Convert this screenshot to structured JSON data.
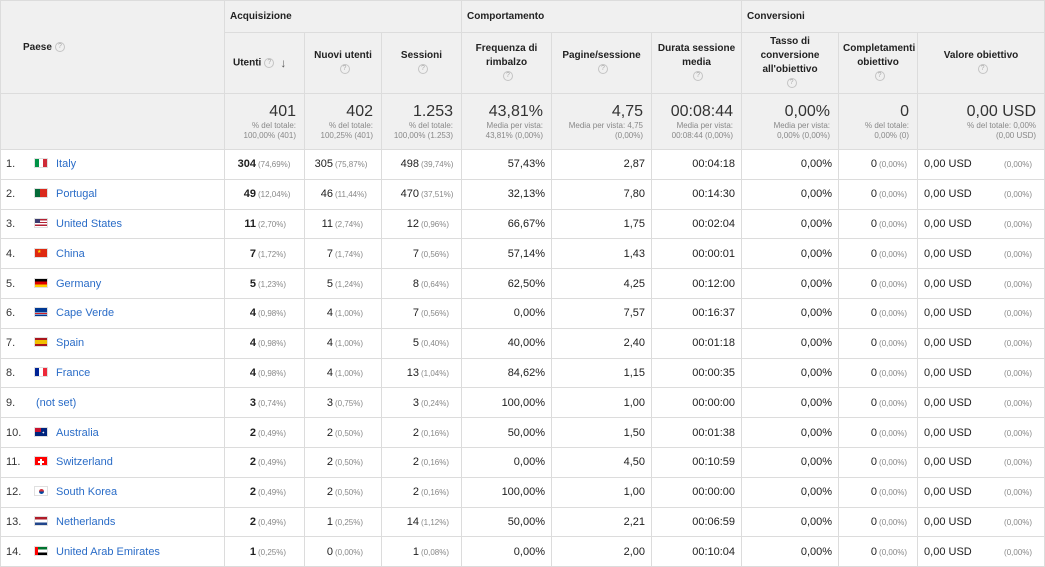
{
  "headers": {
    "paese": "Paese",
    "groups": [
      "Acquisizione",
      "Comportamento",
      "Conversioni"
    ],
    "columns": [
      "Utenti",
      "Nuovi utenti",
      "Sessioni",
      "Frequenza di rimbalzo",
      "Pagine/sessione",
      "Durata sessione media",
      "Tasso di conversione all'obiettivo",
      "Completamenti obiettivo",
      "Valore obiettivo"
    ]
  },
  "totals": [
    {
      "value": "401",
      "note1": "% del totale:",
      "note2": "100,00% (401)"
    },
    {
      "value": "402",
      "note1": "% del totale:",
      "note2": "100,25% (401)"
    },
    {
      "value": "1.253",
      "note1": "% del totale:",
      "note2": "100,00% (1.253)"
    },
    {
      "value": "43,81%",
      "note1": "Media per vista:",
      "note2": "43,81% (0,00%)"
    },
    {
      "value": "4,75",
      "note1": "Media per vista: 4,75",
      "note2": "(0,00%)"
    },
    {
      "value": "00:08:44",
      "note1": "Media per vista:",
      "note2": "00:08:44 (0,00%)"
    },
    {
      "value": "0,00%",
      "note1": "Media per vista:",
      "note2": "0,00% (0,00%)"
    },
    {
      "value": "0",
      "note1": "% del totale:",
      "note2": "0,00% (0)"
    },
    {
      "value": "0,00 USD",
      "note1": "% del totale: 0,00%",
      "note2": "(0,00 USD)"
    }
  ],
  "rows": [
    {
      "rank": "1.",
      "country": "Italy",
      "flag": "it",
      "utenti": "304",
      "utenti_pct": "(74,69%)",
      "nuovi": "305",
      "nuovi_pct": "(75,87%)",
      "sessioni": "498",
      "sessioni_pct": "(39,74%)",
      "rimbalzo": "57,43%",
      "pagine": "2,87",
      "durata": "00:04:18",
      "tasso": "0,00%",
      "compl": "0",
      "compl_pct": "(0,00%)",
      "valore": "0,00 USD",
      "valore_pct": "(0,00%)"
    },
    {
      "rank": "2.",
      "country": "Portugal",
      "flag": "pt",
      "utenti": "49",
      "utenti_pct": "(12,04%)",
      "nuovi": "46",
      "nuovi_pct": "(11,44%)",
      "sessioni": "470",
      "sessioni_pct": "(37,51%)",
      "rimbalzo": "32,13%",
      "pagine": "7,80",
      "durata": "00:14:30",
      "tasso": "0,00%",
      "compl": "0",
      "compl_pct": "(0,00%)",
      "valore": "0,00 USD",
      "valore_pct": "(0,00%)"
    },
    {
      "rank": "3.",
      "country": "United States",
      "flag": "us",
      "utenti": "11",
      "utenti_pct": "(2,70%)",
      "nuovi": "11",
      "nuovi_pct": "(2,74%)",
      "sessioni": "12",
      "sessioni_pct": "(0,96%)",
      "rimbalzo": "66,67%",
      "pagine": "1,75",
      "durata": "00:02:04",
      "tasso": "0,00%",
      "compl": "0",
      "compl_pct": "(0,00%)",
      "valore": "0,00 USD",
      "valore_pct": "(0,00%)"
    },
    {
      "rank": "4.",
      "country": "China",
      "flag": "cn",
      "utenti": "7",
      "utenti_pct": "(1,72%)",
      "nuovi": "7",
      "nuovi_pct": "(1,74%)",
      "sessioni": "7",
      "sessioni_pct": "(0,56%)",
      "rimbalzo": "57,14%",
      "pagine": "1,43",
      "durata": "00:00:01",
      "tasso": "0,00%",
      "compl": "0",
      "compl_pct": "(0,00%)",
      "valore": "0,00 USD",
      "valore_pct": "(0,00%)"
    },
    {
      "rank": "5.",
      "country": "Germany",
      "flag": "de",
      "utenti": "5",
      "utenti_pct": "(1,23%)",
      "nuovi": "5",
      "nuovi_pct": "(1,24%)",
      "sessioni": "8",
      "sessioni_pct": "(0,64%)",
      "rimbalzo": "62,50%",
      "pagine": "4,25",
      "durata": "00:12:00",
      "tasso": "0,00%",
      "compl": "0",
      "compl_pct": "(0,00%)",
      "valore": "0,00 USD",
      "valore_pct": "(0,00%)"
    },
    {
      "rank": "6.",
      "country": "Cape Verde",
      "flag": "cv",
      "utenti": "4",
      "utenti_pct": "(0,98%)",
      "nuovi": "4",
      "nuovi_pct": "(1,00%)",
      "sessioni": "7",
      "sessioni_pct": "(0,56%)",
      "rimbalzo": "0,00%",
      "pagine": "7,57",
      "durata": "00:16:37",
      "tasso": "0,00%",
      "compl": "0",
      "compl_pct": "(0,00%)",
      "valore": "0,00 USD",
      "valore_pct": "(0,00%)"
    },
    {
      "rank": "7.",
      "country": "Spain",
      "flag": "es",
      "utenti": "4",
      "utenti_pct": "(0,98%)",
      "nuovi": "4",
      "nuovi_pct": "(1,00%)",
      "sessioni": "5",
      "sessioni_pct": "(0,40%)",
      "rimbalzo": "40,00%",
      "pagine": "2,40",
      "durata": "00:01:18",
      "tasso": "0,00%",
      "compl": "0",
      "compl_pct": "(0,00%)",
      "valore": "0,00 USD",
      "valore_pct": "(0,00%)"
    },
    {
      "rank": "8.",
      "country": "France",
      "flag": "fr",
      "utenti": "4",
      "utenti_pct": "(0,98%)",
      "nuovi": "4",
      "nuovi_pct": "(1,00%)",
      "sessioni": "13",
      "sessioni_pct": "(1,04%)",
      "rimbalzo": "84,62%",
      "pagine": "1,15",
      "durata": "00:00:35",
      "tasso": "0,00%",
      "compl": "0",
      "compl_pct": "(0,00%)",
      "valore": "0,00 USD",
      "valore_pct": "(0,00%)"
    },
    {
      "rank": "9.",
      "country": "(not set)",
      "flag": "",
      "utenti": "3",
      "utenti_pct": "(0,74%)",
      "nuovi": "3",
      "nuovi_pct": "(0,75%)",
      "sessioni": "3",
      "sessioni_pct": "(0,24%)",
      "rimbalzo": "100,00%",
      "pagine": "1,00",
      "durata": "00:00:00",
      "tasso": "0,00%",
      "compl": "0",
      "compl_pct": "(0,00%)",
      "valore": "0,00 USD",
      "valore_pct": "(0,00%)"
    },
    {
      "rank": "10.",
      "country": "Australia",
      "flag": "au",
      "utenti": "2",
      "utenti_pct": "(0,49%)",
      "nuovi": "2",
      "nuovi_pct": "(0,50%)",
      "sessioni": "2",
      "sessioni_pct": "(0,16%)",
      "rimbalzo": "50,00%",
      "pagine": "1,50",
      "durata": "00:01:38",
      "tasso": "0,00%",
      "compl": "0",
      "compl_pct": "(0,00%)",
      "valore": "0,00 USD",
      "valore_pct": "(0,00%)"
    },
    {
      "rank": "11.",
      "country": "Switzerland",
      "flag": "ch",
      "utenti": "2",
      "utenti_pct": "(0,49%)",
      "nuovi": "2",
      "nuovi_pct": "(0,50%)",
      "sessioni": "2",
      "sessioni_pct": "(0,16%)",
      "rimbalzo": "0,00%",
      "pagine": "4,50",
      "durata": "00:10:59",
      "tasso": "0,00%",
      "compl": "0",
      "compl_pct": "(0,00%)",
      "valore": "0,00 USD",
      "valore_pct": "(0,00%)"
    },
    {
      "rank": "12.",
      "country": "South Korea",
      "flag": "kr",
      "utenti": "2",
      "utenti_pct": "(0,49%)",
      "nuovi": "2",
      "nuovi_pct": "(0,50%)",
      "sessioni": "2",
      "sessioni_pct": "(0,16%)",
      "rimbalzo": "100,00%",
      "pagine": "1,00",
      "durata": "00:00:00",
      "tasso": "0,00%",
      "compl": "0",
      "compl_pct": "(0,00%)",
      "valore": "0,00 USD",
      "valore_pct": "(0,00%)"
    },
    {
      "rank": "13.",
      "country": "Netherlands",
      "flag": "nl",
      "utenti": "2",
      "utenti_pct": "(0,49%)",
      "nuovi": "1",
      "nuovi_pct": "(0,25%)",
      "sessioni": "14",
      "sessioni_pct": "(1,12%)",
      "rimbalzo": "50,00%",
      "pagine": "2,21",
      "durata": "00:06:59",
      "tasso": "0,00%",
      "compl": "0",
      "compl_pct": "(0,00%)",
      "valore": "0,00 USD",
      "valore_pct": "(0,00%)"
    },
    {
      "rank": "14.",
      "country": "United Arab Emirates",
      "flag": "ae",
      "utenti": "1",
      "utenti_pct": "(0,25%)",
      "nuovi": "0",
      "nuovi_pct": "(0,00%)",
      "sessioni": "1",
      "sessioni_pct": "(0,08%)",
      "rimbalzo": "0,00%",
      "pagine": "2,00",
      "durata": "00:10:04",
      "tasso": "0,00%",
      "compl": "0",
      "compl_pct": "(0,00%)",
      "valore": "0,00 USD",
      "valore_pct": "(0,00%)"
    }
  ],
  "colors": {
    "link": "#2a6cc7",
    "header_bg": "#f0f0f0",
    "border": "#dcdcdc"
  }
}
